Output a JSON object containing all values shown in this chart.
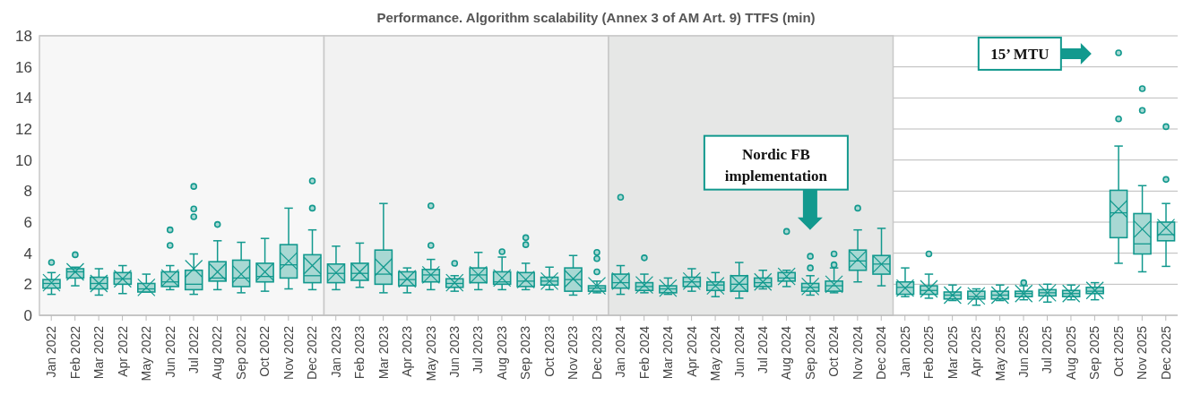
{
  "chart_data": {
    "type": "box",
    "title": "Performance. Algorithm scalability (Annex 3 of AM Art. 9) TTFS (min)",
    "categories": [
      "Jan 2022",
      "Feb 2022",
      "Mar 2022",
      "Apr 2022",
      "May 2022",
      "Jun 2022",
      "Jul 2022",
      "Aug 2022",
      "Sep 2022",
      "Oct 2022",
      "Nov 2022",
      "Dec 2022",
      "Jan 2023",
      "Feb 2023",
      "Mar 2023",
      "Apr 2023",
      "May 2023",
      "Jun 2023",
      "Jul 2023",
      "Aug 2023",
      "Sep 2023",
      "Oct 2023",
      "Nov 2023",
      "Dec 2023",
      "Jan 2024",
      "Feb 2024",
      "Mar 2024",
      "Apr 2024",
      "May 2024",
      "Jun 2024",
      "Jul 2024",
      "Aug 2024",
      "Sep 2024",
      "Oct 2024",
      "Nov 2024",
      "Dec 2024",
      "Jan 2025",
      "Feb 2025",
      "Mar 2025",
      "Apr 2025",
      "May 2025",
      "Jun 2025",
      "Jul 2025",
      "Aug 2025",
      "Sep 2025",
      "Oct 2025",
      "Nov 2025",
      "Dec 2025"
    ],
    "series": [
      {
        "color": "#12998e",
        "boxes": [
          {
            "low": 1.35,
            "q1": 1.75,
            "median": 2.05,
            "q3": 2.3,
            "high": 2.75,
            "mean": 2.1,
            "outliers": [
              3.4
            ]
          },
          {
            "low": 1.9,
            "q1": 2.4,
            "median": 2.8,
            "q3": 3.0,
            "high": 3.1,
            "mean": 2.8,
            "outliers": [
              3.9
            ]
          },
          {
            "low": 1.3,
            "q1": 1.7,
            "median": 2.05,
            "q3": 2.45,
            "high": 3.0,
            "mean": 2.05
          },
          {
            "low": 1.4,
            "q1": 2.0,
            "median": 2.35,
            "q3": 2.75,
            "high": 3.2,
            "mean": 2.35
          },
          {
            "low": 1.5,
            "q1": 1.5,
            "median": 1.7,
            "q3": 2.05,
            "high": 2.65,
            "mean": 1.8
          },
          {
            "low": 1.65,
            "q1": 1.85,
            "median": 2.15,
            "q3": 2.8,
            "high": 3.2,
            "mean": 2.4,
            "outliers": [
              4.5,
              5.5
            ]
          },
          {
            "low": 1.35,
            "q1": 1.65,
            "median": 2.0,
            "q3": 2.9,
            "high": 3.95,
            "mean": 3.0,
            "outliers": [
              6.35,
              6.85,
              8.3
            ]
          },
          {
            "low": 1.65,
            "q1": 2.2,
            "median": 2.4,
            "q3": 3.45,
            "high": 4.8,
            "mean": 2.8,
            "outliers": [
              5.85
            ]
          },
          {
            "low": 1.45,
            "q1": 1.85,
            "median": 2.4,
            "q3": 3.55,
            "high": 4.7,
            "mean": 2.65
          },
          {
            "low": 1.55,
            "q1": 2.15,
            "median": 2.5,
            "q3": 3.35,
            "high": 4.95,
            "mean": 2.8
          },
          {
            "low": 1.7,
            "q1": 2.4,
            "median": 3.25,
            "q3": 4.55,
            "high": 6.9,
            "mean": 3.5
          },
          {
            "low": 1.65,
            "q1": 2.1,
            "median": 2.55,
            "q3": 3.9,
            "high": 5.5,
            "mean": 3.2,
            "outliers": [
              6.9,
              8.65
            ]
          },
          {
            "low": 1.65,
            "q1": 2.1,
            "median": 2.7,
            "q3": 3.3,
            "high": 4.45,
            "mean": 2.75
          },
          {
            "low": 1.8,
            "q1": 2.25,
            "median": 2.7,
            "q3": 3.35,
            "high": 4.65,
            "mean": 2.8
          },
          {
            "low": 1.45,
            "q1": 2.0,
            "median": 2.65,
            "q3": 4.2,
            "high": 7.2,
            "mean": 3.1
          },
          {
            "low": 1.45,
            "q1": 1.9,
            "median": 2.3,
            "q3": 2.8,
            "high": 3.05,
            "mean": 2.35
          },
          {
            "low": 1.65,
            "q1": 2.15,
            "median": 2.6,
            "q3": 2.95,
            "high": 3.6,
            "mean": 2.6,
            "outliers": [
              4.5,
              7.05
            ]
          },
          {
            "low": 1.55,
            "q1": 1.8,
            "median": 2.05,
            "q3": 2.35,
            "high": 2.55,
            "mean": 2.1,
            "outliers": [
              3.35
            ]
          },
          {
            "low": 1.65,
            "q1": 2.1,
            "median": 2.6,
            "q3": 3.05,
            "high": 4.05,
            "mean": 2.6
          },
          {
            "low": 1.65,
            "q1": 2.0,
            "median": 2.15,
            "q3": 2.8,
            "high": 3.75,
            "mean": 2.4,
            "outliers": [
              4.1
            ]
          },
          {
            "low": 1.65,
            "q1": 1.85,
            "median": 2.2,
            "q3": 2.75,
            "high": 3.35,
            "mean": 2.3,
            "outliers": [
              4.55,
              5.0
            ]
          },
          {
            "low": 1.65,
            "q1": 1.95,
            "median": 2.2,
            "q3": 2.45,
            "high": 3.1,
            "mean": 2.2
          },
          {
            "low": 1.3,
            "q1": 1.55,
            "median": 2.3,
            "q3": 3.05,
            "high": 3.85,
            "mean": 2.35
          },
          {
            "low": 1.45,
            "q1": 1.55,
            "median": 1.75,
            "q3": 1.9,
            "high": 2.2,
            "mean": 1.9,
            "outliers": [
              2.8,
              3.65,
              4.05
            ]
          },
          {
            "low": 1.35,
            "q1": 1.75,
            "median": 2.1,
            "q3": 2.65,
            "high": 3.2,
            "mean": 2.2,
            "outliers": [
              7.6
            ]
          },
          {
            "low": 1.45,
            "q1": 1.6,
            "median": 1.85,
            "q3": 2.1,
            "high": 2.65,
            "mean": 1.95,
            "outliers": [
              3.7
            ]
          },
          {
            "low": 1.35,
            "q1": 1.45,
            "median": 1.7,
            "q3": 1.9,
            "high": 2.4,
            "mean": 1.75
          },
          {
            "low": 1.55,
            "q1": 1.85,
            "median": 2.15,
            "q3": 2.45,
            "high": 3.0,
            "mean": 2.2
          },
          {
            "low": 1.2,
            "q1": 1.6,
            "median": 1.95,
            "q3": 2.15,
            "high": 2.75,
            "mean": 1.9
          },
          {
            "low": 1.1,
            "q1": 1.55,
            "median": 2.0,
            "q3": 2.55,
            "high": 3.4,
            "mean": 2.05
          },
          {
            "low": 1.7,
            "q1": 1.85,
            "median": 2.1,
            "q3": 2.4,
            "high": 2.9,
            "mean": 2.15
          },
          {
            "low": 1.85,
            "q1": 2.2,
            "median": 2.4,
            "q3": 2.75,
            "high": 2.9,
            "mean": 2.5,
            "outliers": [
              5.4
            ]
          },
          {
            "low": 1.3,
            "q1": 1.55,
            "median": 1.8,
            "q3": 2.05,
            "high": 2.55,
            "mean": 1.85,
            "outliers": [
              3.05,
              3.8
            ]
          },
          {
            "low": 1.45,
            "q1": 1.55,
            "median": 1.9,
            "q3": 2.2,
            "high": 3.05,
            "mean": 2.0,
            "outliers": [
              3.25,
              3.95
            ]
          },
          {
            "low": 2.15,
            "q1": 2.9,
            "median": 3.5,
            "q3": 4.2,
            "high": 5.5,
            "mean": 3.6,
            "outliers": [
              6.9
            ]
          },
          {
            "low": 1.9,
            "q1": 2.65,
            "median": 3.3,
            "q3": 3.85,
            "high": 5.6,
            "mean": 3.3
          },
          {
            "low": 1.2,
            "q1": 1.35,
            "median": 1.8,
            "q3": 2.15,
            "high": 3.05,
            "mean": 1.75
          },
          {
            "low": 1.1,
            "q1": 1.35,
            "median": 1.6,
            "q3": 1.9,
            "high": 2.65,
            "mean": 1.7,
            "outliers": [
              3.95
            ]
          },
          {
            "low": 0.95,
            "q1": 1.05,
            "median": 1.3,
            "q3": 1.5,
            "high": 1.95,
            "mean": 1.3
          },
          {
            "low": 0.65,
            "q1": 1.05,
            "median": 1.2,
            "q3": 1.55,
            "high": 1.7,
            "mean": 1.25
          },
          {
            "low": 0.95,
            "q1": 1.05,
            "median": 1.3,
            "q3": 1.55,
            "high": 1.95,
            "mean": 1.3
          },
          {
            "low": 1.0,
            "q1": 1.2,
            "median": 1.4,
            "q3": 1.55,
            "high": 1.9,
            "mean": 1.4,
            "outliers": [
              2.1
            ]
          },
          {
            "low": 0.85,
            "q1": 1.25,
            "median": 1.45,
            "q3": 1.65,
            "high": 2.0,
            "mean": 1.45
          },
          {
            "low": 1.0,
            "q1": 1.2,
            "median": 1.4,
            "q3": 1.6,
            "high": 1.95,
            "mean": 1.4
          },
          {
            "low": 1.0,
            "q1": 1.4,
            "median": 1.55,
            "q3": 1.8,
            "high": 2.1,
            "mean": 1.6
          },
          {
            "low": 3.35,
            "q1": 5.0,
            "median": 6.6,
            "q3": 8.05,
            "high": 10.9,
            "mean": 6.85,
            "outliers": [
              12.65,
              16.9
            ]
          },
          {
            "low": 2.8,
            "q1": 3.95,
            "median": 4.6,
            "q3": 6.55,
            "high": 8.35,
            "mean": 5.55,
            "outliers": [
              13.2,
              14.6
            ]
          },
          {
            "low": 3.15,
            "q1": 4.8,
            "median": 5.2,
            "q3": 6.0,
            "high": 7.2,
            "mean": 5.65,
            "outliers": [
              8.75,
              12.15
            ]
          }
        ]
      }
    ],
    "ylim": [
      0,
      18
    ],
    "yticks": [
      0,
      2,
      4,
      6,
      8,
      10,
      12,
      14,
      16,
      18
    ],
    "grid": "y",
    "bands": [
      {
        "axis": "x",
        "from": "Jan 2022",
        "to": "Dec 2022",
        "color": "#f7f7f7"
      },
      {
        "axis": "x",
        "from": "Jan 2023",
        "to": "Dec 2023",
        "color": "#f2f2f2"
      },
      {
        "axis": "x",
        "from": "Jan 2024",
        "to": "Dec 2024",
        "color": "#e6e7e6"
      }
    ],
    "annotations": [
      "Nordic FB implementation",
      "15’ MTU"
    ]
  }
}
